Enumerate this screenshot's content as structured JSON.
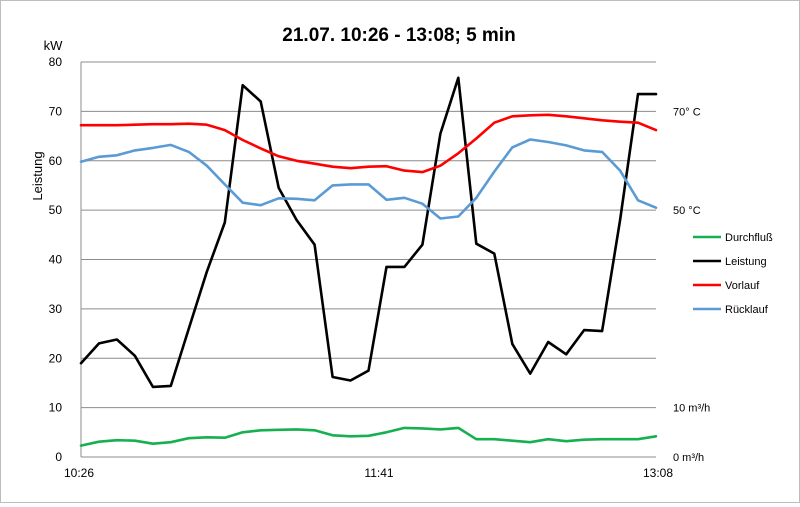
{
  "chart_data": {
    "type": "line",
    "title": "21.07. 10:26 - 13:08; 5 min",
    "ylabel": "Leistung",
    "yunit": "kW",
    "ylim": [
      0,
      80
    ],
    "yticks": [
      0,
      10,
      20,
      30,
      40,
      50,
      60,
      70,
      80
    ],
    "xlim": [
      "10:26",
      "13:08"
    ],
    "xtick_labels": [
      "10:26",
      "11:41",
      "13:08"
    ],
    "secondary_axis_labels": [
      {
        "text": "70° C",
        "at_primary": 70
      },
      {
        "text": "50 °C",
        "at_primary": 50
      },
      {
        "text": "10 m³/h",
        "at_primary": 10
      },
      {
        "text": "0 m³/h",
        "at_primary": 0
      }
    ],
    "grid": true,
    "legend_position": "right",
    "x": [
      0,
      1,
      2,
      3,
      4,
      5,
      6,
      7,
      8,
      9,
      10,
      11,
      12,
      13,
      14,
      15,
      16,
      17,
      18,
      19,
      20,
      21,
      22,
      23,
      24,
      25,
      26,
      27,
      28,
      29,
      30,
      31,
      32
    ],
    "series": [
      {
        "name": "Durchfluß",
        "color": "#17b050",
        "values": [
          2.3,
          3.1,
          3.4,
          3.3,
          2.7,
          3.0,
          3.8,
          4.0,
          3.9,
          5.0,
          5.4,
          5.5,
          5.6,
          5.4,
          4.4,
          4.2,
          4.3,
          5.0,
          5.9,
          5.8,
          5.6,
          5.9,
          3.6,
          3.6,
          3.3,
          3.0,
          3.6,
          3.2,
          3.5,
          3.6,
          3.6,
          3.6,
          4.2
        ]
      },
      {
        "name": "Leistung",
        "color": "#000000",
        "values": [
          19.0,
          23.0,
          23.8,
          20.5,
          14.2,
          14.4,
          26.0,
          37.5,
          47.5,
          75.3,
          72.0,
          54.5,
          48.0,
          43.0,
          16.2,
          15.5,
          17.5,
          38.5,
          38.5,
          43.0,
          65.5,
          76.8,
          43.2,
          41.2,
          22.9,
          16.9,
          23.3,
          20.8,
          25.7,
          25.5,
          48.0,
          73.5,
          73.5
        ]
      },
      {
        "name": "Vorlauf",
        "color": "#ff0000",
        "values": [
          67.2,
          67.2,
          67.2,
          67.3,
          67.4,
          67.4,
          67.5,
          67.3,
          66.2,
          64.2,
          62.5,
          60.9,
          60.0,
          59.4,
          58.8,
          58.5,
          58.8,
          58.9,
          58.0,
          57.7,
          59.0,
          61.5,
          64.5,
          67.7,
          69.0,
          69.2,
          69.3,
          69.0,
          68.6,
          68.2,
          67.9,
          67.7,
          66.2
        ]
      },
      {
        "name": "Rücklauf",
        "color": "#5b9bd5",
        "values": [
          59.8,
          60.8,
          61.1,
          62.1,
          62.6,
          63.2,
          61.8,
          59.0,
          55.2,
          51.5,
          51.0,
          52.4,
          52.3,
          52.0,
          55.0,
          55.2,
          55.2,
          52.1,
          52.5,
          51.3,
          48.3,
          48.7,
          52.5,
          57.8,
          62.7,
          64.3,
          63.8,
          63.1,
          62.1,
          61.8,
          58.0,
          52.0,
          50.5
        ]
      }
    ]
  }
}
